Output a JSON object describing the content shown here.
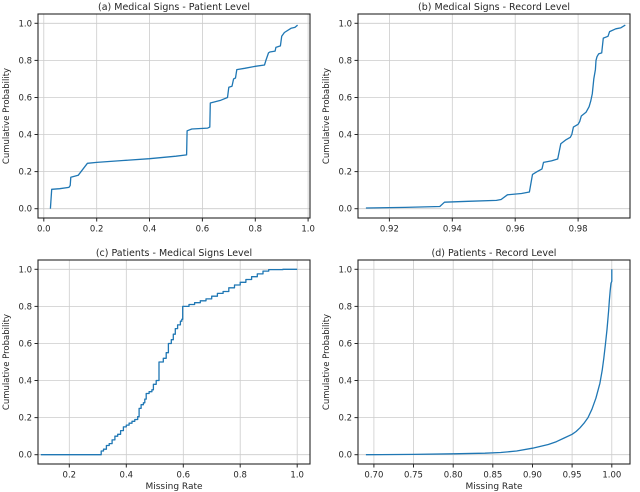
{
  "figure": {
    "background": "#ffffff",
    "line_color": "#1f77b4",
    "grid_color": "#cccccc",
    "axis_color": "#262626",
    "text_color": "#262626",
    "shared_ylabel": "Cumulative Probability",
    "shared_xlabel": "Missing Rate"
  },
  "chart_data": [
    {
      "id": "a",
      "type": "line",
      "title": "(a) Medical Signs - Patient Level",
      "xlabel": "",
      "ylabel": "Cumulative Probability",
      "xlim": [
        -0.022,
        1.007
      ],
      "ylim": [
        -0.05,
        1.05
      ],
      "xticks": [
        0.0,
        0.2,
        0.4,
        0.6,
        0.8,
        1.0
      ],
      "xtick_labels": [
        "0.0",
        "0.2",
        "0.4",
        "0.6",
        "0.8",
        "1.0"
      ],
      "yticks": [
        0.0,
        0.2,
        0.4,
        0.6,
        0.8,
        1.0
      ],
      "ytick_labels": [
        "0.0",
        "0.2",
        "0.4",
        "0.6",
        "0.8",
        "1.0"
      ],
      "grid": true,
      "step": false,
      "points": [
        [
          0.025,
          0.0
        ],
        [
          0.03,
          0.105
        ],
        [
          0.06,
          0.108
        ],
        [
          0.095,
          0.115
        ],
        [
          0.1,
          0.125
        ],
        [
          0.102,
          0.17
        ],
        [
          0.13,
          0.18
        ],
        [
          0.165,
          0.245
        ],
        [
          0.2,
          0.25
        ],
        [
          0.3,
          0.26
        ],
        [
          0.4,
          0.27
        ],
        [
          0.5,
          0.283
        ],
        [
          0.54,
          0.29
        ],
        [
          0.542,
          0.42
        ],
        [
          0.56,
          0.43
        ],
        [
          0.62,
          0.435
        ],
        [
          0.628,
          0.44
        ],
        [
          0.63,
          0.57
        ],
        [
          0.67,
          0.585
        ],
        [
          0.695,
          0.6
        ],
        [
          0.7,
          0.655
        ],
        [
          0.712,
          0.66
        ],
        [
          0.718,
          0.7
        ],
        [
          0.725,
          0.705
        ],
        [
          0.73,
          0.75
        ],
        [
          0.76,
          0.757
        ],
        [
          0.8,
          0.768
        ],
        [
          0.835,
          0.775
        ],
        [
          0.84,
          0.8
        ],
        [
          0.85,
          0.84
        ],
        [
          0.855,
          0.845
        ],
        [
          0.875,
          0.85
        ],
        [
          0.878,
          0.87
        ],
        [
          0.895,
          0.878
        ],
        [
          0.9,
          0.93
        ],
        [
          0.91,
          0.95
        ],
        [
          0.935,
          0.973
        ],
        [
          0.95,
          0.978
        ],
        [
          0.96,
          0.99
        ]
      ]
    },
    {
      "id": "b",
      "type": "line",
      "title": "(b) Medical Signs - Record Level",
      "xlabel": "",
      "ylabel": "Cumulative Probability",
      "xlim": [
        0.91,
        0.9965
      ],
      "ylim": [
        -0.05,
        1.05
      ],
      "xticks": [
        0.92,
        0.94,
        0.96,
        0.98
      ],
      "xtick_labels": [
        "0.92",
        "0.94",
        "0.96",
        "0.98"
      ],
      "yticks": [
        0.0,
        0.2,
        0.4,
        0.6,
        0.8,
        1.0
      ],
      "ytick_labels": [
        "0.0",
        "0.2",
        "0.4",
        "0.6",
        "0.8",
        "1.0"
      ],
      "grid": true,
      "step": false,
      "points": [
        [
          0.9125,
          0.004
        ],
        [
          0.925,
          0.007
        ],
        [
          0.936,
          0.012
        ],
        [
          0.9375,
          0.035
        ],
        [
          0.945,
          0.04
        ],
        [
          0.954,
          0.045
        ],
        [
          0.9555,
          0.05
        ],
        [
          0.9575,
          0.075
        ],
        [
          0.962,
          0.082
        ],
        [
          0.9645,
          0.09
        ],
        [
          0.9655,
          0.185
        ],
        [
          0.967,
          0.2
        ],
        [
          0.9685,
          0.215
        ],
        [
          0.969,
          0.25
        ],
        [
          0.9715,
          0.258
        ],
        [
          0.9735,
          0.268
        ],
        [
          0.9745,
          0.35
        ],
        [
          0.976,
          0.37
        ],
        [
          0.9775,
          0.385
        ],
        [
          0.978,
          0.4
        ],
        [
          0.9785,
          0.44
        ],
        [
          0.98,
          0.455
        ],
        [
          0.9805,
          0.47
        ],
        [
          0.981,
          0.5
        ],
        [
          0.9825,
          0.52
        ],
        [
          0.9835,
          0.55
        ],
        [
          0.984,
          0.58
        ],
        [
          0.9845,
          0.62
        ],
        [
          0.985,
          0.7
        ],
        [
          0.9855,
          0.75
        ],
        [
          0.9857,
          0.8
        ],
        [
          0.986,
          0.82
        ],
        [
          0.9865,
          0.835
        ],
        [
          0.9875,
          0.84
        ],
        [
          0.988,
          0.92
        ],
        [
          0.9895,
          0.93
        ],
        [
          0.99,
          0.955
        ],
        [
          0.992,
          0.97
        ],
        [
          0.9935,
          0.975
        ],
        [
          0.995,
          0.99
        ]
      ]
    },
    {
      "id": "c",
      "type": "line",
      "title": "(c) Patients - Medical Signs Level",
      "xlabel": "Missing Rate",
      "ylabel": "Cumulative Probability",
      "xlim": [
        0.09,
        1.045
      ],
      "ylim": [
        -0.05,
        1.05
      ],
      "xticks": [
        0.2,
        0.4,
        0.6,
        0.8,
        1.0
      ],
      "xtick_labels": [
        "0.2",
        "0.4",
        "0.6",
        "0.8",
        "1.0"
      ],
      "yticks": [
        0.0,
        0.2,
        0.4,
        0.6,
        0.8,
        1.0
      ],
      "ytick_labels": [
        "0.0",
        "0.2",
        "0.4",
        "0.6",
        "0.8",
        "1.0"
      ],
      "grid": true,
      "step": true,
      "points": [
        [
          0.1,
          0.0
        ],
        [
          0.31,
          0.0
        ],
        [
          0.312,
          0.02
        ],
        [
          0.32,
          0.03
        ],
        [
          0.33,
          0.05
        ],
        [
          0.34,
          0.06
        ],
        [
          0.35,
          0.08
        ],
        [
          0.36,
          0.1
        ],
        [
          0.37,
          0.11
        ],
        [
          0.38,
          0.13
        ],
        [
          0.39,
          0.15
        ],
        [
          0.4,
          0.16
        ],
        [
          0.41,
          0.17
        ],
        [
          0.42,
          0.18
        ],
        [
          0.43,
          0.19
        ],
        [
          0.44,
          0.205
        ],
        [
          0.445,
          0.25
        ],
        [
          0.452,
          0.27
        ],
        [
          0.46,
          0.28
        ],
        [
          0.465,
          0.3
        ],
        [
          0.47,
          0.33
        ],
        [
          0.48,
          0.34
        ],
        [
          0.49,
          0.35
        ],
        [
          0.495,
          0.38
        ],
        [
          0.505,
          0.4
        ],
        [
          0.515,
          0.5
        ],
        [
          0.53,
          0.52
        ],
        [
          0.54,
          0.55
        ],
        [
          0.548,
          0.6
        ],
        [
          0.558,
          0.62
        ],
        [
          0.565,
          0.65
        ],
        [
          0.572,
          0.68
        ],
        [
          0.58,
          0.7
        ],
        [
          0.59,
          0.72
        ],
        [
          0.595,
          0.73
        ],
        [
          0.598,
          0.8
        ],
        [
          0.62,
          0.81
        ],
        [
          0.64,
          0.82
        ],
        [
          0.66,
          0.83
        ],
        [
          0.68,
          0.84
        ],
        [
          0.7,
          0.855
        ],
        [
          0.72,
          0.87
        ],
        [
          0.74,
          0.88
        ],
        [
          0.76,
          0.9
        ],
        [
          0.78,
          0.915
        ],
        [
          0.8,
          0.93
        ],
        [
          0.82,
          0.945
        ],
        [
          0.84,
          0.96
        ],
        [
          0.86,
          0.975
        ],
        [
          0.88,
          0.99
        ],
        [
          0.9,
          0.998
        ],
        [
          0.95,
          1.0
        ],
        [
          1.0,
          1.0
        ]
      ]
    },
    {
      "id": "d",
      "type": "line",
      "title": "(d) Patients - Record Level",
      "xlabel": "Missing Rate",
      "ylabel": "Cumulative Probability",
      "xlim": [
        0.68,
        1.023
      ],
      "ylim": [
        -0.05,
        1.05
      ],
      "xticks": [
        0.7,
        0.75,
        0.8,
        0.85,
        0.9,
        0.95,
        1.0
      ],
      "xtick_labels": [
        "0.70",
        "0.75",
        "0.80",
        "0.85",
        "0.90",
        "0.95",
        "1.00"
      ],
      "yticks": [
        0.0,
        0.2,
        0.4,
        0.6,
        0.8,
        1.0
      ],
      "ytick_labels": [
        "0.0",
        "0.2",
        "0.4",
        "0.6",
        "0.8",
        "1.0"
      ],
      "grid": true,
      "step": false,
      "points": [
        [
          0.69,
          0.0
        ],
        [
          0.75,
          0.002
        ],
        [
          0.8,
          0.005
        ],
        [
          0.84,
          0.008
        ],
        [
          0.86,
          0.012
        ],
        [
          0.88,
          0.02
        ],
        [
          0.9,
          0.035
        ],
        [
          0.91,
          0.045
        ],
        [
          0.92,
          0.055
        ],
        [
          0.93,
          0.07
        ],
        [
          0.94,
          0.09
        ],
        [
          0.95,
          0.11
        ],
        [
          0.955,
          0.125
        ],
        [
          0.96,
          0.145
        ],
        [
          0.965,
          0.17
        ],
        [
          0.97,
          0.2
        ],
        [
          0.975,
          0.245
        ],
        [
          0.98,
          0.305
        ],
        [
          0.985,
          0.385
        ],
        [
          0.988,
          0.455
        ],
        [
          0.99,
          0.52
        ],
        [
          0.992,
          0.595
        ],
        [
          0.994,
          0.675
        ],
        [
          0.995,
          0.725
        ],
        [
          0.996,
          0.775
        ],
        [
          0.997,
          0.835
        ],
        [
          0.998,
          0.885
        ],
        [
          0.999,
          0.925
        ],
        [
          1.0,
          0.935
        ],
        [
          1.0,
          1.0
        ]
      ]
    }
  ]
}
